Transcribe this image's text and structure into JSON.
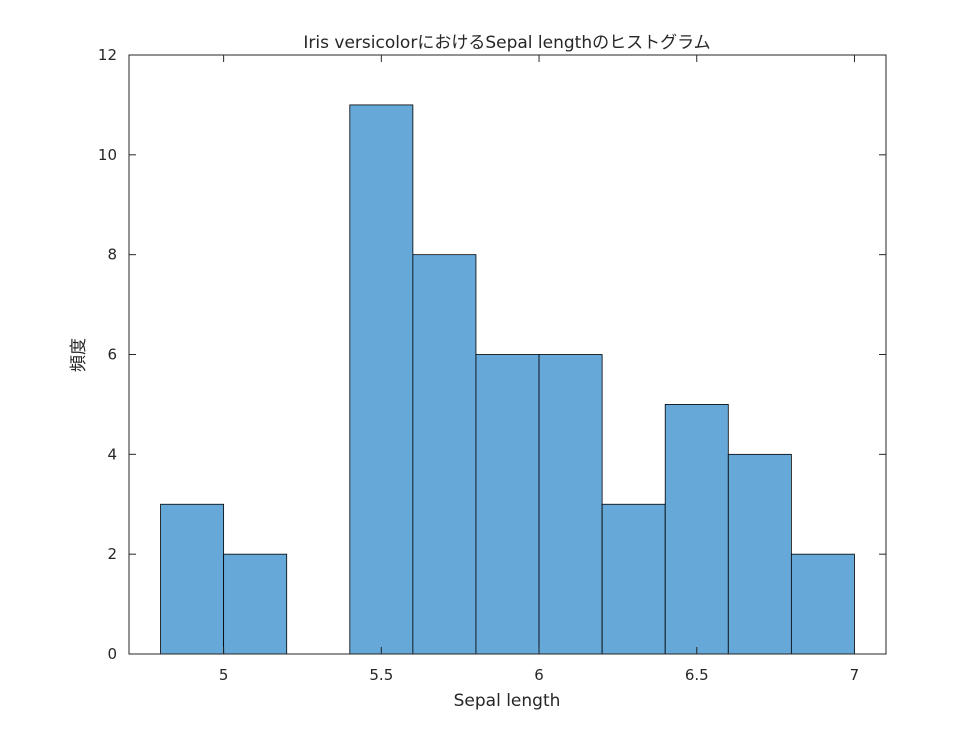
{
  "chart_data": {
    "type": "bar",
    "subtype": "histogram",
    "title": "Iris versicolorにおけるSepal lengthのヒストグラム",
    "xlabel": "Sepal length",
    "ylabel": "頻度",
    "xlim": [
      4.7,
      7.1
    ],
    "ylim": [
      0,
      12
    ],
    "xticks": [
      5,
      5.5,
      6,
      6.5,
      7
    ],
    "xtick_labels": [
      "5",
      "5.5",
      "6",
      "6.5",
      "7"
    ],
    "yticks": [
      0,
      2,
      4,
      6,
      8,
      10,
      12
    ],
    "ytick_labels": [
      "0",
      "2",
      "4",
      "6",
      "8",
      "10",
      "12"
    ],
    "bin_edges": [
      4.8,
      5.0,
      5.2,
      5.4,
      5.6,
      5.8,
      6.0,
      6.2,
      6.4,
      6.6,
      6.8,
      7.0
    ],
    "counts": [
      3,
      2,
      0,
      11,
      8,
      6,
      6,
      3,
      5,
      4,
      2
    ],
    "bar_color": "#66a9d8",
    "edge_color": "#000000",
    "grid": false
  }
}
